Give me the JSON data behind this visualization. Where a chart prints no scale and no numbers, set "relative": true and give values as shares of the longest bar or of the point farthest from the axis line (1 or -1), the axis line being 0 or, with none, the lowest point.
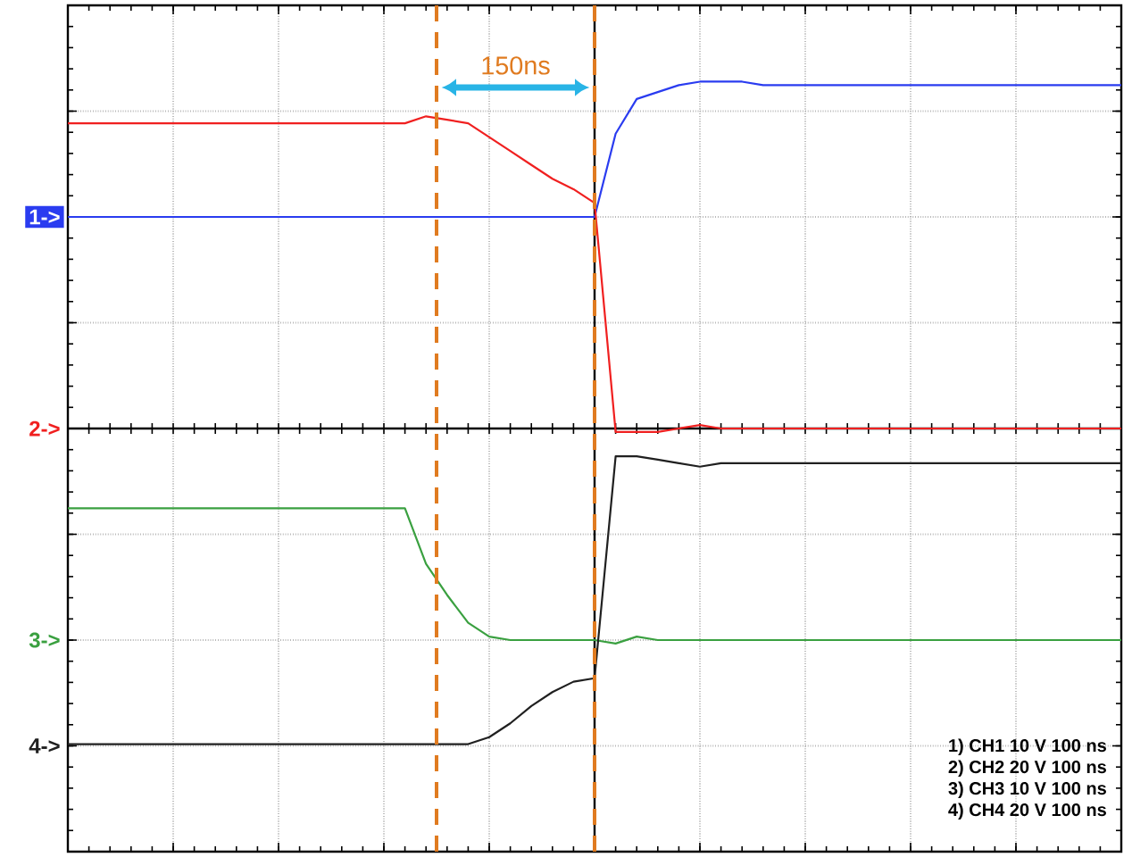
{
  "chart_data": {
    "type": "line",
    "relative": true,
    "categories": [
      null,
      null,
      null,
      null,
      null,
      null,
      null,
      null,
      null,
      null,
      null,
      null,
      null,
      null,
      null,
      null,
      null,
      null,
      null,
      null,
      null,
      null,
      null,
      null,
      null,
      null,
      null,
      null,
      null,
      null,
      null,
      null,
      null,
      null,
      null,
      null,
      null,
      null,
      null,
      null,
      null,
      null,
      null,
      null,
      null,
      null,
      null,
      null,
      null,
      null,
      null
    ],
    "grid": true,
    "marker": "none",
    "line_style": "solid",
    "series": [
      {
        "color": "#2a3cf0",
        "values": [
          0.61,
          0.61,
          0.61,
          0.61,
          0.61,
          0.61,
          0.61,
          0.61,
          0.61,
          0.61,
          0.61,
          0.61,
          0.61,
          0.61,
          0.61,
          0.61,
          0.61,
          0.61,
          0.61,
          0.61,
          0.61,
          0.61,
          0.61,
          0.61,
          0.61,
          0.61,
          0.85,
          0.95,
          0.97,
          0.99,
          1.0,
          1.0,
          1.0,
          0.99,
          0.99,
          0.99,
          0.99,
          0.99,
          0.99,
          0.99,
          0.99,
          0.99,
          0.99,
          0.99,
          0.99,
          0.99,
          0.99,
          0.99,
          0.99,
          0.99,
          0.99
        ]
      },
      {
        "color": "#f02020",
        "values": [
          0.88,
          0.88,
          0.88,
          0.88,
          0.88,
          0.88,
          0.88,
          0.88,
          0.88,
          0.88,
          0.88,
          0.88,
          0.88,
          0.88,
          0.88,
          0.88,
          0.88,
          0.9,
          0.89,
          0.88,
          0.84,
          0.8,
          0.76,
          0.72,
          0.69,
          0.65,
          -0.01,
          -0.01,
          -0.01,
          0,
          0.01,
          0,
          0,
          0,
          0,
          0,
          0,
          0,
          0,
          0,
          0,
          0,
          0,
          0,
          0,
          0,
          0,
          0,
          0,
          0,
          0
        ]
      },
      {
        "color": "#3aa040",
        "values": [
          -0.23,
          -0.23,
          -0.23,
          -0.23,
          -0.23,
          -0.23,
          -0.23,
          -0.23,
          -0.23,
          -0.23,
          -0.23,
          -0.23,
          -0.23,
          -0.23,
          -0.23,
          -0.23,
          -0.23,
          -0.39,
          -0.48,
          -0.56,
          -0.6,
          -0.61,
          -0.61,
          -0.61,
          -0.61,
          -0.61,
          -0.62,
          -0.6,
          -0.61,
          -0.61,
          -0.61,
          -0.61,
          -0.61,
          -0.61,
          -0.61,
          -0.61,
          -0.61,
          -0.61,
          -0.61,
          -0.61,
          -0.61,
          -0.61,
          -0.61,
          -0.61,
          -0.61,
          -0.61,
          -0.61,
          -0.61,
          -0.61,
          -0.61,
          -0.61
        ]
      },
      {
        "color": "#202020",
        "values": [
          -0.91,
          -0.91,
          -0.91,
          -0.91,
          -0.91,
          -0.91,
          -0.91,
          -0.91,
          -0.91,
          -0.91,
          -0.91,
          -0.91,
          -0.91,
          -0.91,
          -0.91,
          -0.91,
          -0.91,
          -0.91,
          -0.91,
          -0.91,
          -0.89,
          -0.85,
          -0.8,
          -0.76,
          -0.73,
          -0.72,
          -0.08,
          -0.08,
          -0.09,
          -0.1,
          -0.11,
          -0.1,
          -0.1,
          -0.1,
          -0.1,
          -0.1,
          -0.1,
          -0.1,
          -0.1,
          -0.1,
          -0.1,
          -0.1,
          -0.1,
          -0.1,
          -0.1,
          -0.1,
          -0.1,
          -0.1,
          -0.1,
          -0.1,
          -0.1
        ]
      }
    ],
    "annotations": [
      "150ns",
      "1->",
      "2->",
      "3->",
      "4->",
      "1) CH1 10 V 100 ns",
      "2) CH2 20 V 100 ns",
      "3) CH3 10 V 100 ns",
      "4) CH4 20 V 100 ns"
    ]
  }
}
